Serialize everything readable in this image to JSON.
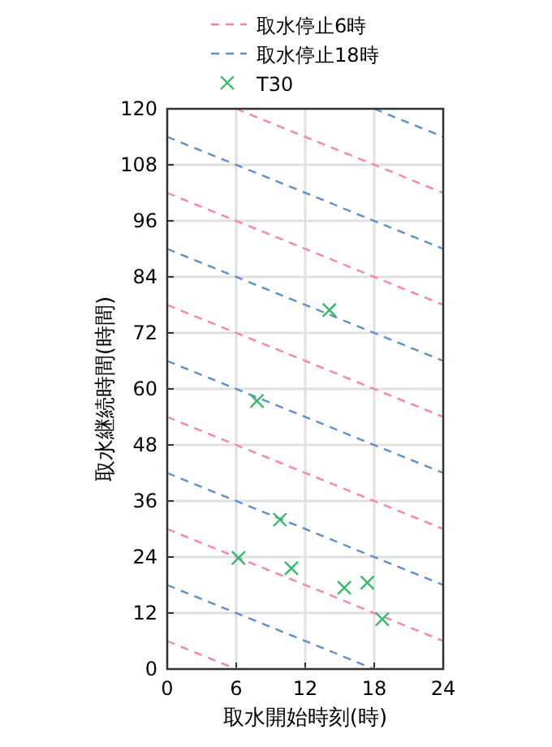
{
  "chart_data": {
    "type": "line",
    "xlabel": "取水開始時刻(時)",
    "ylabel": "取水継続時間(時間)",
    "xlim": [
      0,
      24
    ],
    "ylim": [
      0,
      120
    ],
    "xticks": [
      0,
      6,
      12,
      18,
      24
    ],
    "yticks": [
      0,
      12,
      24,
      36,
      48,
      60,
      72,
      84,
      96,
      108,
      120
    ],
    "grid": true,
    "legend": "top",
    "series": [
      {
        "name": "取水停止6時",
        "color": "#ff80a8",
        "line_style": "dashed",
        "x": [
          0,
          6
        ],
        "values": [
          6,
          0
        ]
      },
      {
        "color": "#ff80a8",
        "line_style": "dashed",
        "x": [
          0,
          24
        ],
        "values": [
          30,
          6
        ]
      },
      {
        "color": "#ff80a8",
        "line_style": "dashed",
        "x": [
          0,
          24
        ],
        "values": [
          54,
          30
        ]
      },
      {
        "color": "#ff80a8",
        "line_style": "dashed",
        "x": [
          0,
          24
        ],
        "values": [
          78,
          54
        ]
      },
      {
        "color": "#ff80a8",
        "line_style": "dashed",
        "x": [
          0,
          24
        ],
        "values": [
          102,
          78
        ]
      },
      {
        "color": "#ff80a8",
        "line_style": "dashed",
        "x": [
          6,
          24
        ],
        "values": [
          120,
          102
        ]
      },
      {
        "name": "取水停止18時",
        "color": "#5b8fd0",
        "line_style": "dashed",
        "x": [
          0,
          18
        ],
        "values": [
          18,
          0
        ]
      },
      {
        "color": "#5b8fd0",
        "line_style": "dashed",
        "x": [
          0,
          24
        ],
        "values": [
          42,
          18
        ]
      },
      {
        "color": "#5b8fd0",
        "line_style": "dashed",
        "x": [
          0,
          24
        ],
        "values": [
          66,
          42
        ]
      },
      {
        "color": "#5b8fd0",
        "line_style": "dashed",
        "x": [
          0,
          24
        ],
        "values": [
          90,
          66
        ]
      },
      {
        "color": "#5b8fd0",
        "line_style": "dashed",
        "x": [
          0,
          24
        ],
        "values": [
          114,
          90
        ]
      },
      {
        "color": "#5b8fd0",
        "line_style": "dashed",
        "x": [
          18,
          24
        ],
        "values": [
          120,
          114
        ]
      },
      {
        "name": "T30",
        "type": "scatter",
        "marker": "cross",
        "color": "#33bb66",
        "x": [
          14.1,
          7.8,
          9.8,
          6.2,
          10.8,
          15.4,
          17.4,
          18.7
        ],
        "values": [
          76.9,
          57.4,
          32,
          23.8,
          21.6,
          17.4,
          18.5,
          10.7
        ]
      }
    ]
  }
}
